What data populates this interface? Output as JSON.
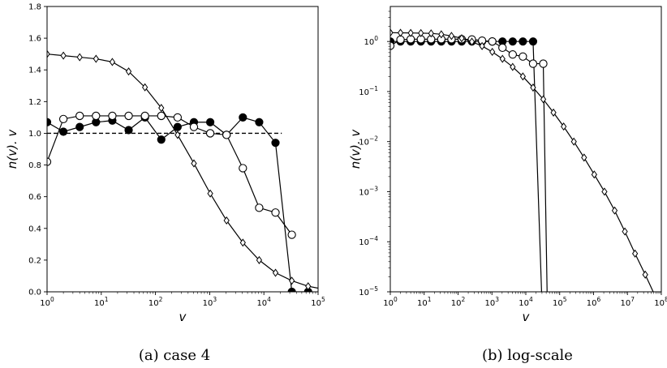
{
  "chart_data": [
    {
      "type": "line",
      "caption": "(a)  case 4",
      "xlabel": "v",
      "ylabel": "n(v). v",
      "xscale": "log",
      "yscale": "linear",
      "xlim": [
        1,
        100000
      ],
      "ylim": [
        0,
        1.8
      ],
      "xticks": [
        {
          "value": 1,
          "base": "10",
          "exp": "0"
        },
        {
          "value": 10,
          "base": "10",
          "exp": "1"
        },
        {
          "value": 100,
          "base": "10",
          "exp": "2"
        },
        {
          "value": 1000,
          "base": "10",
          "exp": "3"
        },
        {
          "value": 10000,
          "base": "10",
          "exp": "4"
        },
        {
          "value": 100000,
          "base": "10",
          "exp": "5"
        }
      ],
      "yticks": [
        {
          "value": 0,
          "label": "0.0"
        },
        {
          "value": 0.2,
          "label": "0.2"
        },
        {
          "value": 0.4,
          "label": "0.4"
        },
        {
          "value": 0.6,
          "label": "0.6"
        },
        {
          "value": 0.8,
          "label": "0.8"
        },
        {
          "value": 1.0,
          "label": "1.0"
        },
        {
          "value": 1.2,
          "label": "1.2"
        },
        {
          "value": 1.4,
          "label": "1.4"
        },
        {
          "value": 1.6,
          "label": "1.6"
        },
        {
          "value": 1.8,
          "label": "1.8"
        }
      ],
      "grid": false,
      "reference_line": {
        "y": 1.0,
        "style": "dashed"
      },
      "series": [
        {
          "marker": "filled-circle",
          "x": [
            1,
            2,
            4,
            8,
            16,
            32,
            64,
            128,
            256,
            512,
            1024,
            2048,
            4096,
            8192,
            16384,
            32768,
            65536
          ],
          "y": [
            1.07,
            1.01,
            1.04,
            1.07,
            1.08,
            1.02,
            1.1,
            0.96,
            1.04,
            1.07,
            1.07,
            0.99,
            1.1,
            1.07,
            0.94,
            0.0,
            0.0
          ]
        },
        {
          "marker": "open-circle",
          "x": [
            1,
            2,
            4,
            8,
            16,
            32,
            64,
            128,
            256,
            512,
            1024,
            2048,
            4096,
            8192,
            16384,
            32768
          ],
          "y": [
            0.82,
            1.09,
            1.11,
            1.11,
            1.11,
            1.11,
            1.11,
            1.11,
            1.1,
            1.04,
            1.0,
            0.99,
            0.78,
            0.53,
            0.5,
            0.36
          ]
        },
        {
          "marker": "open-diamond",
          "x": [
            1,
            2,
            4,
            8,
            16,
            32,
            64,
            128,
            256,
            512,
            1024,
            2048,
            4096,
            8192,
            16384,
            32768,
            65536,
            131072
          ],
          "y": [
            1.5,
            1.49,
            1.48,
            1.47,
            1.45,
            1.39,
            1.29,
            1.16,
            0.99,
            0.81,
            0.62,
            0.45,
            0.31,
            0.2,
            0.12,
            0.07,
            0.035,
            0.015
          ]
        }
      ]
    },
    {
      "type": "line",
      "caption": "(b)  log-scale",
      "xlabel": "v",
      "ylabel": "n(v). v",
      "xscale": "log",
      "yscale": "log",
      "xlim": [
        1,
        100000000
      ],
      "ylim": [
        1e-05,
        5
      ],
      "xticks": [
        {
          "value": 1,
          "base": "10",
          "exp": "0"
        },
        {
          "value": 10,
          "base": "10",
          "exp": "1"
        },
        {
          "value": 100,
          "base": "10",
          "exp": "2"
        },
        {
          "value": 1000,
          "base": "10",
          "exp": "3"
        },
        {
          "value": 10000,
          "base": "10",
          "exp": "4"
        },
        {
          "value": 100000,
          "base": "10",
          "exp": "5"
        },
        {
          "value": 1000000,
          "base": "10",
          "exp": "6"
        },
        {
          "value": 10000000,
          "base": "10",
          "exp": "7"
        },
        {
          "value": 100000000,
          "base": "10",
          "exp": "8"
        }
      ],
      "yticks": [
        {
          "value": 1e-05,
          "base": "10",
          "exp": "−5"
        },
        {
          "value": 0.0001,
          "base": "10",
          "exp": "−4"
        },
        {
          "value": 0.001,
          "base": "10",
          "exp": "−3"
        },
        {
          "value": 0.01,
          "base": "10",
          "exp": "−2"
        },
        {
          "value": 0.1,
          "base": "10",
          "exp": "−1"
        },
        {
          "value": 1,
          "base": "10",
          "exp": "0"
        }
      ],
      "grid": false,
      "series": [
        {
          "marker": "filled-circle",
          "x": [
            1,
            2,
            4,
            8,
            16,
            32,
            64,
            128,
            256,
            512,
            1024,
            2048,
            4096,
            8192,
            16384,
            32768
          ],
          "y": [
            1.0,
            1.0,
            1.0,
            1.0,
            1.0,
            1.0,
            1.0,
            1.0,
            1.0,
            1.0,
            1.0,
            1.0,
            1.0,
            1.0,
            1.0,
            1e-06
          ]
        },
        {
          "marker": "open-circle",
          "x": [
            1,
            2,
            4,
            8,
            16,
            32,
            64,
            128,
            256,
            512,
            1024,
            2048,
            4096,
            8192,
            16384,
            32768,
            45000
          ],
          "y": [
            0.82,
            1.09,
            1.11,
            1.11,
            1.11,
            1.11,
            1.11,
            1.11,
            1.1,
            1.04,
            1.0,
            0.75,
            0.55,
            0.5,
            0.36,
            0.36,
            1e-06
          ]
        },
        {
          "marker": "open-diamond",
          "x": [
            1,
            2,
            4,
            8,
            16,
            32,
            64,
            128,
            256,
            512,
            1024,
            2048,
            4096,
            8192,
            16384,
            32768,
            65536,
            131072,
            262144,
            524288,
            1048576,
            2097152,
            4194304,
            8388608,
            16777216,
            33554432,
            67108864
          ],
          "y": [
            1.5,
            1.49,
            1.48,
            1.47,
            1.45,
            1.39,
            1.29,
            1.16,
            0.99,
            0.81,
            0.62,
            0.45,
            0.31,
            0.2,
            0.12,
            0.07,
            0.038,
            0.02,
            0.01,
            0.0048,
            0.0022,
            0.001,
            0.00042,
            0.00016,
            5.8e-05,
            2.2e-05,
            8e-06
          ]
        }
      ]
    }
  ]
}
